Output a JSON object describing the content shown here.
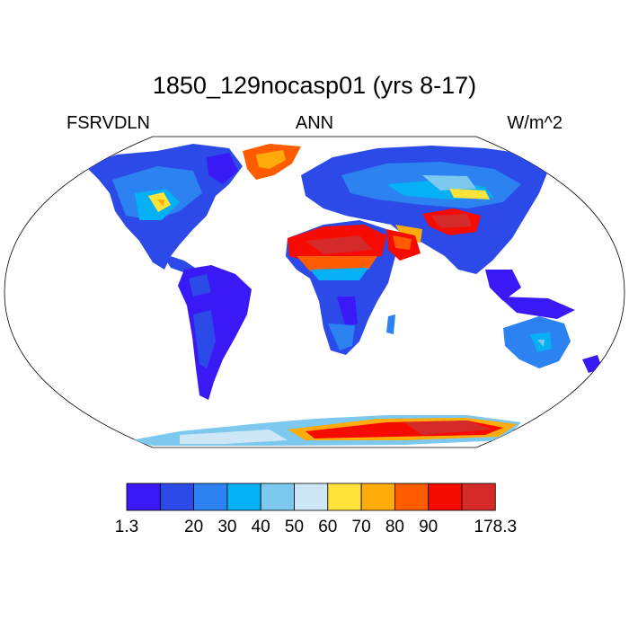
{
  "title": "1850_129nocasp01 (yrs 8-17)",
  "left_label": "FSRVDLN",
  "center_label": "ANN",
  "right_label": "W/m^2",
  "colorbar": {
    "colors": [
      "#3a19f7",
      "#2b4ae8",
      "#2b82f0",
      "#06b0f5",
      "#7cc8ee",
      "#cde7f7",
      "#ffe33a",
      "#ffab0a",
      "#ff5c00",
      "#f70a00",
      "#d42a2a"
    ],
    "labels": [
      "1.3",
      "20",
      "30",
      "40",
      "50",
      "60",
      "70",
      "80",
      "90",
      "178.3"
    ]
  }
}
